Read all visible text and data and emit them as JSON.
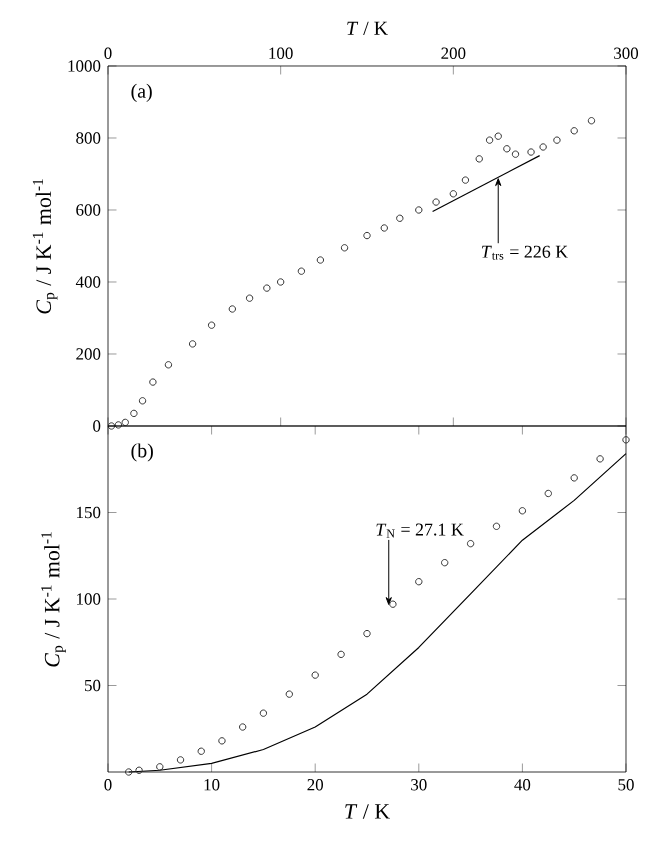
{
  "chart_data": [
    {
      "type": "scatter",
      "xlabel": "*T* / K",
      "ylabel": "*C*$_{p}$ / J K$^{-1}$ mol$^{-1}$",
      "xlim": [
        0,
        300
      ],
      "xticks": [
        0,
        100,
        200,
        300
      ],
      "ylim": [
        0,
        1000
      ],
      "yticks": [
        0,
        200,
        400,
        600,
        800,
        1000
      ],
      "annotations": [
        "(a)",
        {
          "text": "*T*$_{trs}$ = 226 K",
          "x": 226,
          "y": 691
        }
      ],
      "series": [
        {
          "color": "#333333",
          "marker": "circle",
          "x": [
            2,
            6,
            10,
            15,
            20,
            26,
            35,
            49,
            60,
            72,
            82,
            92,
            100,
            112,
            123,
            137,
            150,
            160,
            169,
            180,
            190,
            200,
            207,
            215,
            221,
            226,
            231,
            236,
            245,
            252,
            260,
            270,
            280
          ],
          "values": [
            0,
            3,
            10,
            35,
            70,
            122,
            170,
            228,
            280,
            325,
            355,
            383,
            400,
            430,
            461,
            495,
            529,
            550,
            577,
            600,
            622,
            645,
            683,
            742,
            794,
            805,
            770,
            755,
            761,
            775,
            794,
            820,
            848
          ]
        },
        {
          "type": "line",
          "marker": "none",
          "color": "#000000",
          "x": [
            188,
            250
          ],
          "values": [
            596,
            751
          ]
        }
      ]
    },
    {
      "type": "scatter",
      "xlabel": "*T* / K",
      "ylabel": "*C*$_{p}$ / J K$^{-1}$ mol$^{-1}$",
      "xlim": [
        0,
        50
      ],
      "xticks": [
        0,
        10,
        20,
        30,
        40,
        50
      ],
      "ylim": [
        0,
        200
      ],
      "yticks": [
        50,
        100,
        150
      ],
      "annotations": [
        "(b)",
        {
          "text": "*T*$_{N}$ = 27.1 K",
          "x": 27.1,
          "y": 96
        }
      ],
      "series": [
        {
          "color": "#333333",
          "marker": "circle",
          "x": [
            2,
            3,
            5,
            7,
            9,
            11,
            13,
            15,
            17.5,
            20,
            22.5,
            25,
            27.5,
            30,
            32.5,
            35,
            37.5,
            40,
            42.5,
            45,
            47.5,
            50
          ],
          "values": [
            0,
            1,
            3,
            7,
            12,
            18,
            26,
            34,
            45,
            56,
            68,
            80,
            97,
            110,
            121,
            132,
            142,
            151,
            161,
            170,
            181,
            192
          ]
        },
        {
          "type": "line",
          "marker": "none",
          "color": "#000000",
          "x": [
            2,
            5,
            10,
            15,
            20,
            25,
            30,
            35,
            40,
            45,
            50
          ],
          "values": [
            0,
            1,
            5,
            13,
            26,
            45,
            72,
            103,
            134,
            157,
            184
          ]
        }
      ]
    }
  ]
}
